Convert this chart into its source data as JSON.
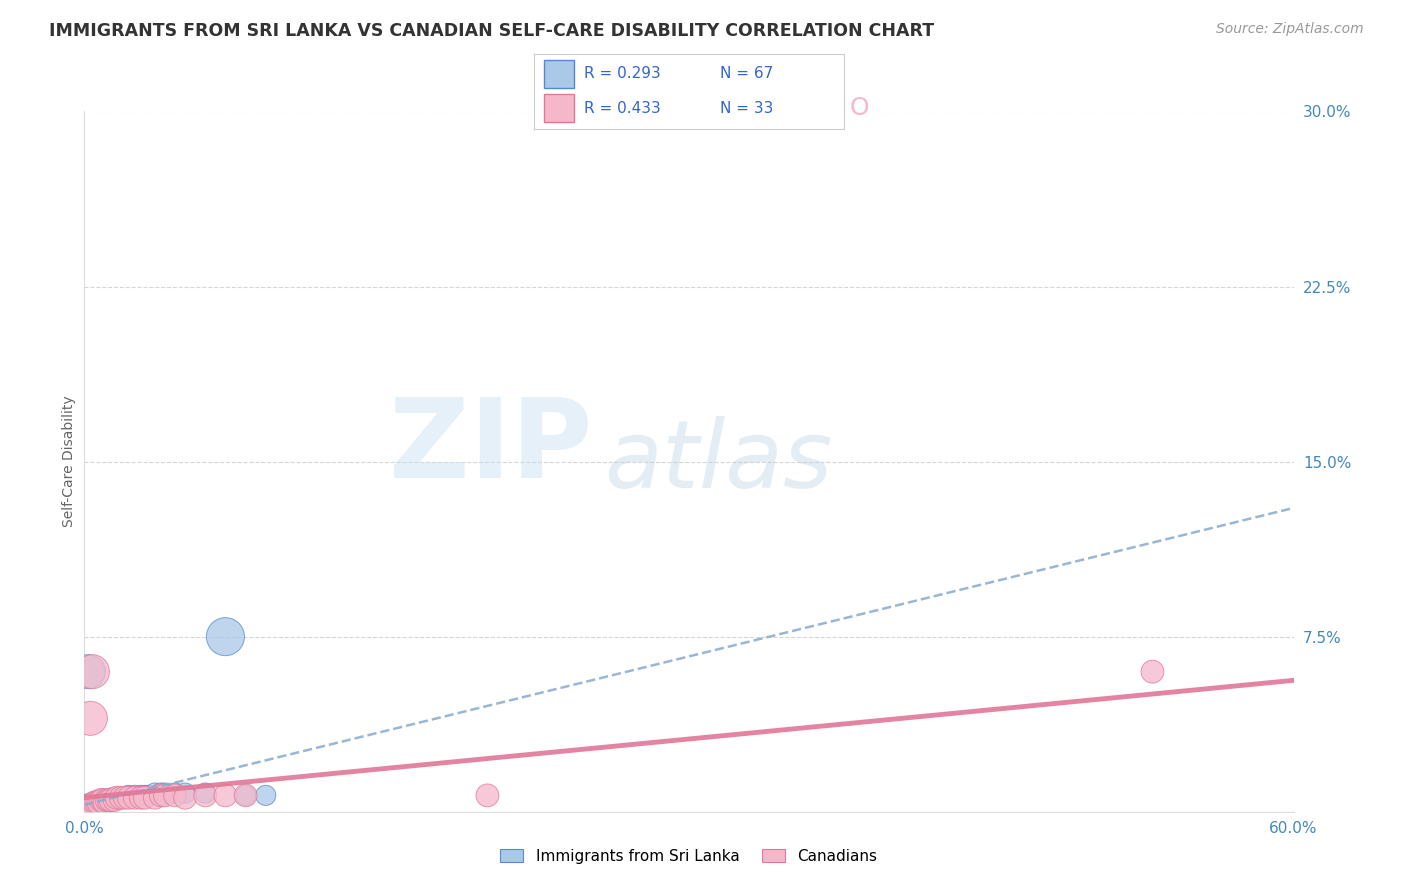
{
  "title": "IMMIGRANTS FROM SRI LANKA VS CANADIAN SELF-CARE DISABILITY CORRELATION CHART",
  "source": "Source: ZipAtlas.com",
  "ylabel": "Self-Care Disability",
  "xlim": [
    0.0,
    0.6
  ],
  "ylim": [
    0.0,
    0.3
  ],
  "xticks": [
    0.0,
    0.1,
    0.2,
    0.3,
    0.4,
    0.5,
    0.6
  ],
  "yticks": [
    0.0,
    0.075,
    0.15,
    0.225,
    0.3
  ],
  "xtick_labels": [
    "0.0%",
    "",
    "",
    "",
    "",
    "",
    "60.0%"
  ],
  "ytick_labels": [
    "",
    "7.5%",
    "15.0%",
    "22.5%",
    "30.0%"
  ],
  "blue_R": 0.293,
  "blue_N": 67,
  "pink_R": 0.433,
  "pink_N": 33,
  "blue_color": "#aac8e8",
  "pink_color": "#f5b8cb",
  "blue_edge": "#5588cc",
  "pink_edge": "#e07898",
  "trend_blue_color": "#88aacc",
  "trend_pink_color": "#e07898",
  "blue_x": [
    0.001,
    0.001,
    0.001,
    0.001,
    0.001,
    0.001,
    0.001,
    0.002,
    0.002,
    0.002,
    0.002,
    0.002,
    0.002,
    0.002,
    0.002,
    0.002,
    0.003,
    0.003,
    0.003,
    0.003,
    0.003,
    0.003,
    0.004,
    0.004,
    0.004,
    0.004,
    0.004,
    0.005,
    0.005,
    0.005,
    0.006,
    0.006,
    0.006,
    0.007,
    0.007,
    0.007,
    0.008,
    0.008,
    0.009,
    0.009,
    0.01,
    0.01,
    0.011,
    0.012,
    0.013,
    0.014,
    0.015,
    0.016,
    0.018,
    0.02,
    0.022,
    0.025,
    0.028,
    0.03,
    0.032,
    0.035,
    0.038,
    0.04,
    0.045,
    0.05,
    0.06,
    0.07,
    0.08,
    0.09,
    0.002,
    0.001,
    0.001
  ],
  "blue_y": [
    0.001,
    0.002,
    0.001,
    0.001,
    0.002,
    0.001,
    0.001,
    0.001,
    0.002,
    0.003,
    0.002,
    0.002,
    0.002,
    0.003,
    0.002,
    0.001,
    0.002,
    0.003,
    0.002,
    0.003,
    0.002,
    0.003,
    0.002,
    0.003,
    0.003,
    0.004,
    0.003,
    0.003,
    0.004,
    0.003,
    0.003,
    0.004,
    0.003,
    0.003,
    0.004,
    0.004,
    0.004,
    0.005,
    0.004,
    0.005,
    0.004,
    0.005,
    0.005,
    0.005,
    0.005,
    0.006,
    0.005,
    0.006,
    0.006,
    0.006,
    0.007,
    0.007,
    0.007,
    0.007,
    0.007,
    0.008,
    0.008,
    0.008,
    0.008,
    0.008,
    0.008,
    0.075,
    0.007,
    0.007,
    0.06,
    0.003,
    0.002
  ],
  "blue_sizes": [
    60,
    60,
    60,
    60,
    60,
    60,
    70,
    80,
    80,
    80,
    80,
    80,
    80,
    80,
    80,
    80,
    70,
    70,
    70,
    70,
    70,
    70,
    70,
    70,
    70,
    70,
    70,
    70,
    70,
    70,
    70,
    70,
    70,
    70,
    70,
    70,
    70,
    70,
    70,
    70,
    70,
    70,
    70,
    70,
    70,
    70,
    70,
    70,
    70,
    70,
    70,
    70,
    70,
    70,
    70,
    70,
    70,
    70,
    70,
    70,
    70,
    250,
    70,
    70,
    200,
    60,
    60
  ],
  "pink_x": [
    0.001,
    0.002,
    0.003,
    0.004,
    0.005,
    0.006,
    0.007,
    0.008,
    0.009,
    0.01,
    0.011,
    0.012,
    0.013,
    0.015,
    0.016,
    0.018,
    0.02,
    0.022,
    0.025,
    0.028,
    0.03,
    0.035,
    0.038,
    0.04,
    0.045,
    0.05,
    0.06,
    0.07,
    0.08,
    0.2,
    0.53,
    0.003,
    0.004
  ],
  "pink_y": [
    0.001,
    0.002,
    0.003,
    0.003,
    0.004,
    0.004,
    0.004,
    0.005,
    0.005,
    0.004,
    0.005,
    0.005,
    0.005,
    0.005,
    0.006,
    0.006,
    0.006,
    0.006,
    0.006,
    0.006,
    0.006,
    0.006,
    0.007,
    0.007,
    0.007,
    0.006,
    0.007,
    0.007,
    0.007,
    0.007,
    0.06,
    0.04,
    0.06
  ],
  "pink_sizes": [
    90,
    90,
    90,
    90,
    90,
    90,
    90,
    90,
    90,
    90,
    90,
    90,
    90,
    90,
    90,
    90,
    90,
    90,
    90,
    90,
    90,
    90,
    90,
    90,
    90,
    90,
    90,
    90,
    90,
    90,
    90,
    200,
    200
  ],
  "watermark_zip": "ZIP",
  "watermark_atlas": "atlas",
  "background_color": "#ffffff",
  "grid_color": "#cccccc"
}
